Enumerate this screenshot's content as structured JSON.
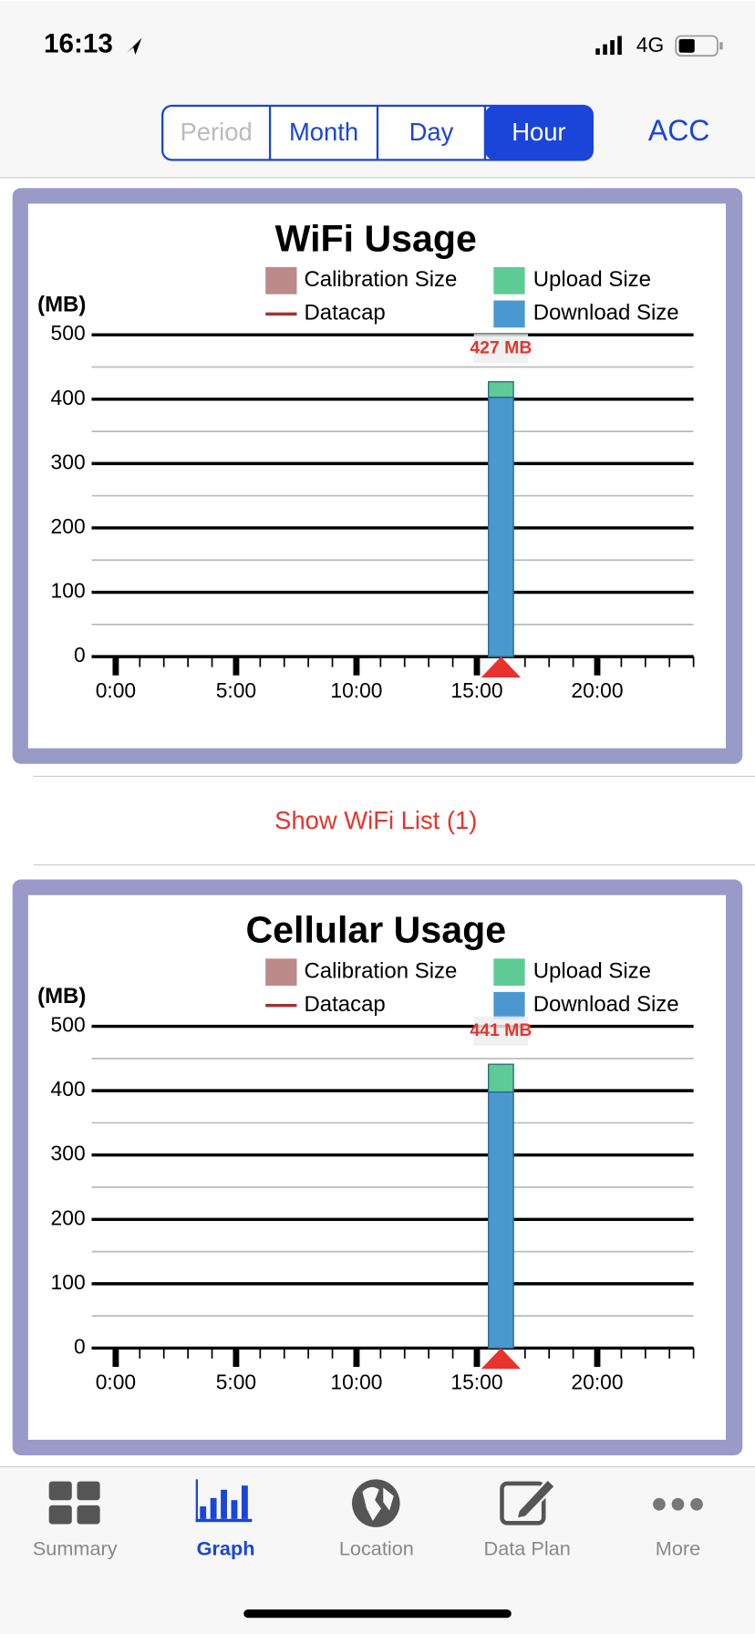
{
  "status_bar": {
    "time": "16:13",
    "network": "4G"
  },
  "segments": [
    {
      "label": "Period",
      "enabled": false,
      "selected": false
    },
    {
      "label": "Month",
      "enabled": true,
      "selected": false
    },
    {
      "label": "Day",
      "enabled": true,
      "selected": false
    },
    {
      "label": "Hour",
      "enabled": true,
      "selected": true
    }
  ],
  "account_button": "ACC",
  "chart_data": [
    {
      "type": "bar",
      "stacked": true,
      "title": "WiFi Usage",
      "y_label": "(MB)",
      "legend_items": [
        {
          "name": "Calibration Size",
          "color": "#bc8a8a",
          "marker": "box"
        },
        {
          "name": "Datacap",
          "color": "#a33232",
          "marker": "line"
        }
      ],
      "x": [
        16
      ],
      "series": [
        {
          "name": "Download Size",
          "color": "#4a98cf",
          "values": [
            403
          ]
        },
        {
          "name": "Upload Size",
          "color": "#5ecb97",
          "values": [
            24
          ]
        }
      ],
      "total_labels": [
        "427 MB"
      ],
      "xlim": [
        -1,
        24
      ],
      "xticks": [
        {
          "value": 0,
          "label": "0:00"
        },
        {
          "value": 5,
          "label": "5:00"
        },
        {
          "value": 10,
          "label": "10:00"
        },
        {
          "value": 15,
          "label": "15:00"
        },
        {
          "value": 20,
          "label": "20:00"
        }
      ],
      "xminorticks": [
        1,
        2,
        3,
        4,
        6,
        7,
        8,
        9,
        11,
        12,
        13,
        14,
        16,
        17,
        18,
        19,
        21,
        22,
        23,
        24
      ],
      "ylim": [
        0,
        500
      ],
      "yticks": [
        0,
        100,
        200,
        300,
        400,
        500
      ],
      "yminorticks": [
        50,
        150,
        250,
        350,
        450
      ],
      "grid": true
    },
    {
      "type": "bar",
      "stacked": true,
      "title": "Cellular Usage",
      "y_label": "(MB)",
      "legend_items": [
        {
          "name": "Calibration Size",
          "color": "#bc8a8a",
          "marker": "box"
        },
        {
          "name": "Datacap",
          "color": "#a33232",
          "marker": "line"
        }
      ],
      "x": [
        16
      ],
      "series": [
        {
          "name": "Download Size",
          "color": "#4a98cf",
          "values": [
            398
          ]
        },
        {
          "name": "Upload Size",
          "color": "#5ecb97",
          "values": [
            43
          ]
        }
      ],
      "total_labels": [
        "441 MB"
      ],
      "xlim": [
        -1,
        24
      ],
      "xticks": [
        {
          "value": 0,
          "label": "0:00"
        },
        {
          "value": 5,
          "label": "5:00"
        },
        {
          "value": 10,
          "label": "10:00"
        },
        {
          "value": 15,
          "label": "15:00"
        },
        {
          "value": 20,
          "label": "20:00"
        }
      ],
      "xminorticks": [
        1,
        2,
        3,
        4,
        6,
        7,
        8,
        9,
        11,
        12,
        13,
        14,
        16,
        17,
        18,
        19,
        21,
        22,
        23,
        24
      ],
      "ylim": [
        0,
        500
      ],
      "yticks": [
        0,
        100,
        200,
        300,
        400,
        500
      ],
      "yminorticks": [
        50,
        150,
        250,
        350,
        450
      ],
      "grid": true
    }
  ],
  "wifi_list_button": "Show WiFi List (1)",
  "tabs": [
    {
      "label": "Summary",
      "selected": false
    },
    {
      "label": "Graph",
      "selected": true
    },
    {
      "label": "Location",
      "selected": false
    },
    {
      "label": "Data Plan",
      "selected": false
    },
    {
      "label": "More",
      "selected": false
    }
  ]
}
